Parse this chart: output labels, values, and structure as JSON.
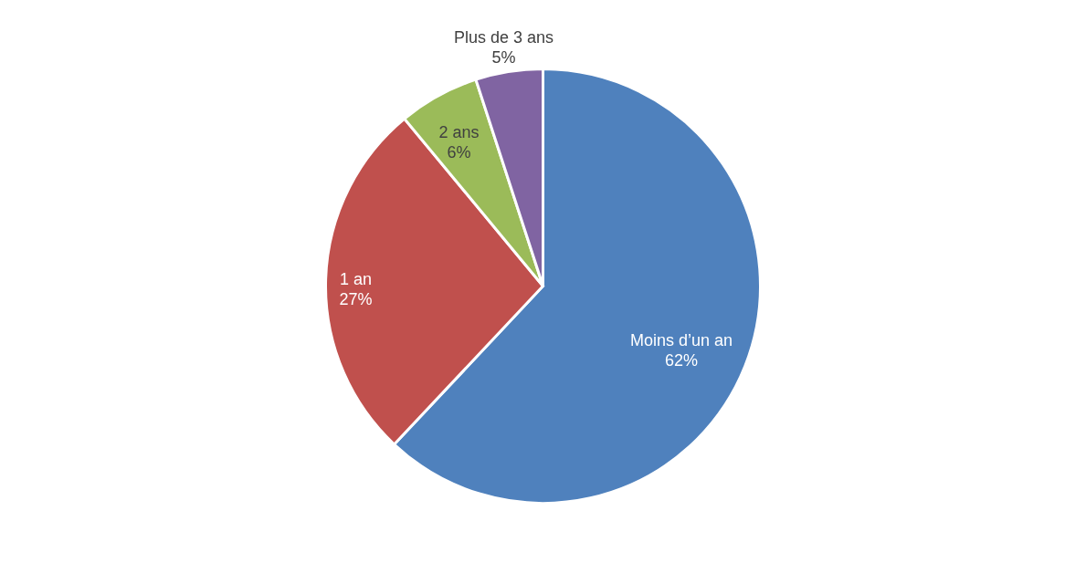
{
  "chart_data": {
    "type": "pie",
    "categories": [
      "Moins d’un an",
      "1 an",
      "2 ans",
      "Plus de 3 ans"
    ],
    "values": [
      62,
      27,
      6,
      5
    ],
    "value_labels": [
      "62%",
      "27%",
      "6%",
      "5%"
    ],
    "colors": [
      "#4f81bd",
      "#c0504d",
      "#9bbb59",
      "#8064a2"
    ]
  }
}
